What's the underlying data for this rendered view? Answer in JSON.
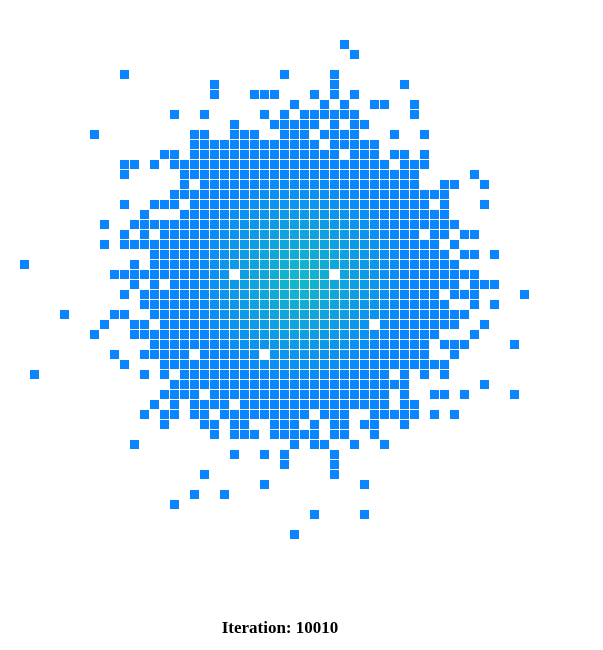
{
  "simulation": {
    "iteration_prefix": "Iteration: ",
    "iteration_value": "10010",
    "iteration_label": "Iteration: 10010",
    "cell_color_edge": "#0a84ff",
    "cell_color_center": "#12b8c8",
    "background_color": "#ffffff"
  }
}
